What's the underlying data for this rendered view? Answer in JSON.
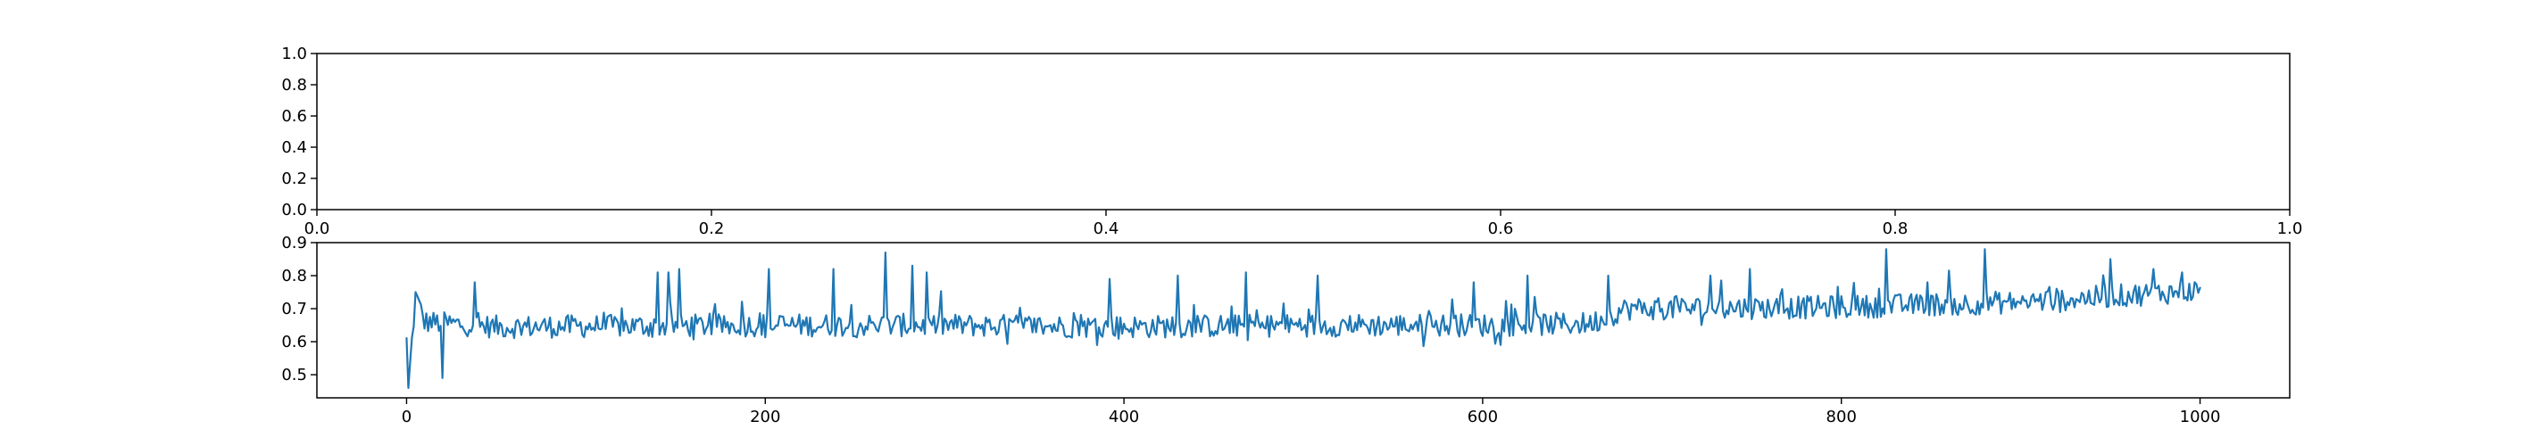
{
  "chart_data": [
    {
      "type": "line",
      "title": "",
      "xlabel": "",
      "ylabel": "",
      "xlim": [
        0.0,
        1.0
      ],
      "ylim": [
        0.0,
        1.0
      ],
      "xticks": [
        "0.0",
        "0.2",
        "0.4",
        "0.6",
        "0.8",
        "1.0"
      ],
      "yticks": [
        "0.0",
        "0.2",
        "0.4",
        "0.6",
        "0.8",
        "1.0"
      ],
      "grid": false,
      "series": []
    },
    {
      "type": "line",
      "title": "",
      "xlabel": "",
      "ylabel": "",
      "xlim": [
        -50,
        1050
      ],
      "ylim": [
        0.43,
        0.9
      ],
      "xticks": [
        "0",
        "200",
        "400",
        "600",
        "800",
        "1000"
      ],
      "yticks": [
        "0.5",
        "0.6",
        "0.7",
        "0.8",
        "0.9"
      ],
      "grid": false,
      "color": "#1f77b4",
      "series": [
        {
          "x_start": 0,
          "x_end": 1000,
          "n_points": 1001,
          "trend": [
            [
              0,
              0.6
            ],
            [
              1,
              0.46
            ],
            [
              5,
              0.74
            ],
            [
              10,
              0.66
            ],
            [
              50,
              0.645
            ],
            [
              200,
              0.65
            ],
            [
              300,
              0.65
            ],
            [
              400,
              0.645
            ],
            [
              500,
              0.65
            ],
            [
              600,
              0.65
            ],
            [
              660,
              0.655
            ],
            [
              680,
              0.7
            ],
            [
              800,
              0.705
            ],
            [
              900,
              0.72
            ],
            [
              1000,
              0.755
            ]
          ],
          "spikes": [
            [
              1,
              0.46
            ],
            [
              5,
              0.75
            ],
            [
              20,
              0.49
            ],
            [
              38,
              0.78
            ],
            [
              140,
              0.81
            ],
            [
              146,
              0.81
            ],
            [
              152,
              0.82
            ],
            [
              202,
              0.82
            ],
            [
              238,
              0.82
            ],
            [
              267,
              0.87
            ],
            [
              282,
              0.83
            ],
            [
              290,
              0.81
            ],
            [
              392,
              0.79
            ],
            [
              430,
              0.8
            ],
            [
              468,
              0.81
            ],
            [
              508,
              0.8
            ],
            [
              595,
              0.78
            ],
            [
              625,
              0.8
            ],
            [
              670,
              0.8
            ],
            [
              727,
              0.8
            ],
            [
              749,
              0.82
            ],
            [
              825,
              0.88
            ],
            [
              848,
              0.78
            ],
            [
              880,
              0.88
            ],
            [
              950,
              0.85
            ],
            [
              974,
              0.82
            ],
            [
              990,
              0.81
            ]
          ]
        }
      ]
    }
  ]
}
